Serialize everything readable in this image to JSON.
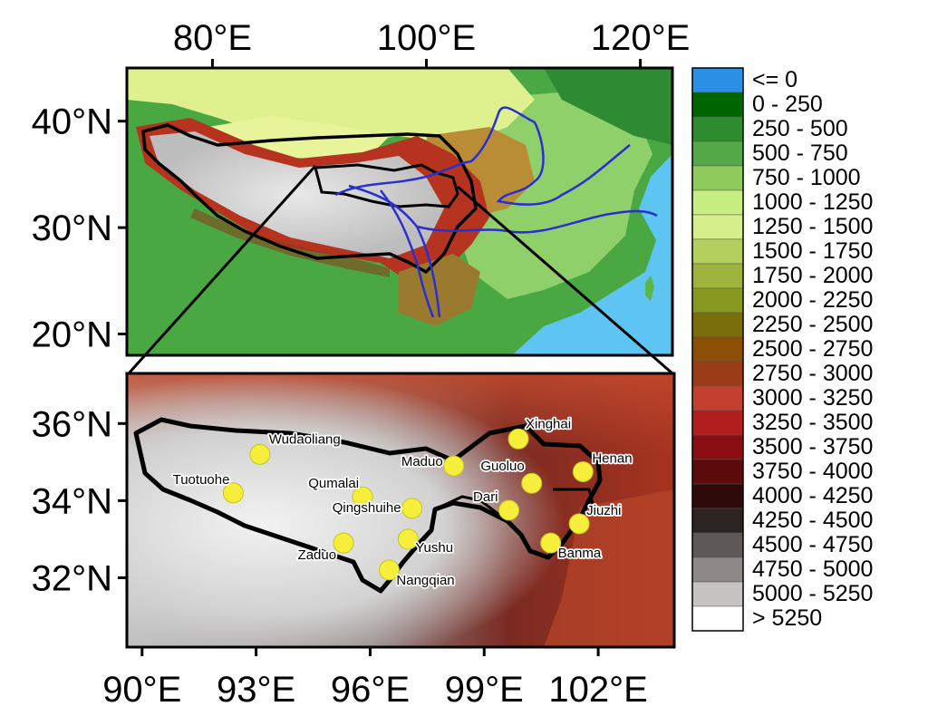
{
  "top_map": {
    "lon_ticks": [
      {
        "value": 80,
        "label": "80°E"
      },
      {
        "value": 100,
        "label": "100°E"
      },
      {
        "value": 120,
        "label": "120°E"
      }
    ],
    "lat_ticks": [
      {
        "value": 40,
        "label": "40°N"
      },
      {
        "value": 30,
        "label": "30°N"
      },
      {
        "value": 20,
        "label": "20°N"
      }
    ],
    "extent": {
      "lon": [
        72,
        123
      ],
      "lat": [
        18,
        45
      ]
    }
  },
  "bottom_map": {
    "lon_ticks": [
      {
        "value": 90,
        "label": "90°E"
      },
      {
        "value": 93,
        "label": "93°E"
      },
      {
        "value": 96,
        "label": "96°E"
      },
      {
        "value": 99,
        "label": "99°E"
      },
      {
        "value": 102,
        "label": "102°E"
      }
    ],
    "lat_ticks": [
      {
        "value": 36,
        "label": "36°N"
      },
      {
        "value": 34,
        "label": "34°N"
      },
      {
        "value": 32,
        "label": "32°N"
      }
    ],
    "extent": {
      "lon": [
        89.6,
        104
      ],
      "lat": [
        30.2,
        37.3
      ]
    }
  },
  "stations": [
    {
      "name": "Xinghai",
      "lon": 99.9,
      "lat": 35.6
    },
    {
      "name": "Wudaoliang",
      "lon": 93.1,
      "lat": 35.2
    },
    {
      "name": "Maduo",
      "lon": 98.2,
      "lat": 34.9
    },
    {
      "name": "Henan",
      "lon": 101.6,
      "lat": 34.75
    },
    {
      "name": "Guoluo",
      "lon": 100.25,
      "lat": 34.45
    },
    {
      "name": "Tuotuohe",
      "lon": 92.4,
      "lat": 34.2
    },
    {
      "name": "Qumalai",
      "lon": 95.8,
      "lat": 34.1
    },
    {
      "name": "Qingshuihe",
      "lon": 97.1,
      "lat": 33.8
    },
    {
      "name": "Dari",
      "lon": 99.65,
      "lat": 33.75
    },
    {
      "name": "Jiuzhi",
      "lon": 101.5,
      "lat": 33.4
    },
    {
      "name": "Yushu",
      "lon": 97.0,
      "lat": 33.0
    },
    {
      "name": "Zaduo",
      "lon": 95.3,
      "lat": 32.9
    },
    {
      "name": "Banma",
      "lon": 100.75,
      "lat": 32.9
    },
    {
      "name": "Nangqian",
      "lon": 96.5,
      "lat": 32.2
    }
  ],
  "legend": [
    {
      "label": "<= 0",
      "color": "#2b8fe6"
    },
    {
      "label": "0 - 250",
      "color": "#006400"
    },
    {
      "label": "250 - 500",
      "color": "#2e8b2e"
    },
    {
      "label": "500 - 750",
      "color": "#54a845"
    },
    {
      "label": "750 - 1000",
      "color": "#8fca5c"
    },
    {
      "label": "1000 - 1250",
      "color": "#c8ee82"
    },
    {
      "label": "1250 - 1500",
      "color": "#d6ef8a"
    },
    {
      "label": "1500 - 1750",
      "color": "#b3cf5c"
    },
    {
      "label": "1750 - 2000",
      "color": "#9db33b"
    },
    {
      "label": "2000 - 2250",
      "color": "#86981e"
    },
    {
      "label": "2250 - 2500",
      "color": "#7a6e0c"
    },
    {
      "label": "2500 - 2750",
      "color": "#8c4f08"
    },
    {
      "label": "2750 - 3000",
      "color": "#9c3b17"
    },
    {
      "label": "3000 - 3250",
      "color": "#c43f2f"
    },
    {
      "label": "3250 - 3500",
      "color": "#b01e1e"
    },
    {
      "label": "3500 - 3750",
      "color": "#8b0f12"
    },
    {
      "label": "3750 - 4000",
      "color": "#5c0b0c"
    },
    {
      "label": "4000 - 4250",
      "color": "#2e0a0a"
    },
    {
      "label": "4250 - 4500",
      "color": "#2b2522"
    },
    {
      "label": "4500 - 4750",
      "color": "#5e5856"
    },
    {
      "label": "4750 - 5000",
      "color": "#8e8886"
    },
    {
      "label": "5000 - 5250",
      "color": "#c6c3c2"
    },
    {
      "label": "> 5250",
      "color": "#ffffff"
    }
  ],
  "colors": {
    "station_marker": "#f5ef3c",
    "river": "#2a2fd0",
    "boundary": "#000000"
  }
}
